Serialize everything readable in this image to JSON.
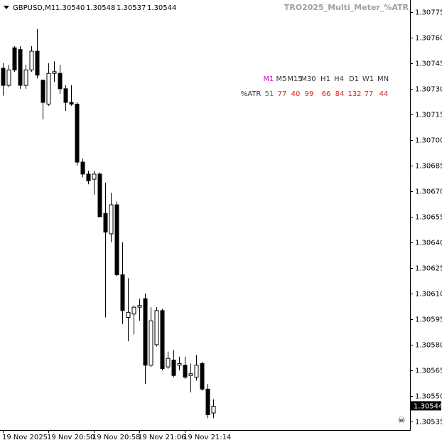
{
  "chart_data": {
    "type": "candlestick",
    "symbol": "GBPUSD,M1",
    "ohlc_labels": [
      "1.30540",
      "1.30548",
      "1.30537",
      "1.30544"
    ],
    "categories": [
      "19 Nov 2025",
      null,
      null,
      null,
      null,
      null,
      null,
      null,
      "19 Nov 20:50",
      null,
      null,
      null,
      null,
      null,
      null,
      null,
      "19 Nov 20:58",
      null,
      null,
      null,
      null,
      null,
      null,
      null,
      "19 Nov 21:06",
      null,
      null,
      null,
      null,
      null,
      null,
      null,
      "19 Nov 21:14",
      null,
      null,
      null,
      null,
      null
    ],
    "open": [
      1.30742,
      1.30732,
      1.30754,
      1.30753,
      1.30732,
      1.30741,
      1.30752,
      1.30735,
      1.30721,
      1.30739,
      1.30739,
      1.3073,
      1.30722,
      1.30721,
      1.30687,
      1.3068,
      1.30677,
      1.3068,
      1.30657,
      1.30645,
      1.30662,
      1.30621,
      1.30596,
      1.30598,
      1.30602,
      1.30607,
      1.30568,
      1.3058,
      1.306,
      1.30567,
      1.30571,
      1.30568,
      1.30568,
      1.30562,
      1.30561,
      1.30569,
      1.30554,
      1.3054
    ],
    "high": [
      1.30745,
      1.30744,
      1.30755,
      1.30755,
      1.30744,
      1.30755,
      1.30765,
      1.30735,
      1.30745,
      1.30746,
      1.30744,
      1.30732,
      1.30732,
      1.30722,
      1.30689,
      1.30682,
      1.30682,
      1.30681,
      1.30675,
      1.30669,
      1.30664,
      1.3064,
      1.30619,
      1.30603,
      1.30607,
      1.3061,
      1.30602,
      1.30602,
      1.30601,
      1.30576,
      1.30577,
      1.30573,
      1.30573,
      1.30569,
      1.30574,
      1.3057,
      1.30557,
      1.30548
    ],
    "low": [
      1.30726,
      1.30731,
      1.3074,
      1.3073,
      1.3073,
      1.3074,
      1.30736,
      1.30712,
      1.3072,
      1.30734,
      1.30727,
      1.30717,
      1.3072,
      1.30685,
      1.30678,
      1.30674,
      1.30668,
      1.30655,
      1.30596,
      1.3064,
      1.3062,
      1.30592,
      1.30582,
      1.30586,
      1.30594,
      1.30557,
      1.30567,
      1.30579,
      1.30565,
      1.30566,
      1.30561,
      1.30565,
      1.3056,
      1.30552,
      1.30559,
      1.30553,
      1.30537,
      1.30537
    ],
    "close": [
      1.30732,
      1.30741,
      1.30741,
      1.30732,
      1.30741,
      1.30752,
      1.30738,
      1.30722,
      1.30739,
      1.3074,
      1.3073,
      1.30722,
      1.30721,
      1.30687,
      1.3068,
      1.30676,
      1.3068,
      1.30655,
      1.30646,
      1.30662,
      1.30621,
      1.306,
      1.30599,
      1.30602,
      1.30603,
      1.30568,
      1.30594,
      1.306,
      1.30566,
      1.30572,
      1.30562,
      1.30569,
      1.30561,
      1.30563,
      1.30568,
      1.30554,
      1.30539,
      1.30544
    ],
    "up_color": "#ffffff",
    "down_color": "#000000",
    "ylim": [
      1.3053,
      1.30782
    ],
    "yticks": [
      {
        "value": 1.30775,
        "label": "1.30775"
      },
      {
        "value": 1.3076,
        "label": "1.30760"
      },
      {
        "value": 1.30745,
        "label": "1.30745"
      },
      {
        "value": 1.3073,
        "label": "1.30730"
      },
      {
        "value": 1.30715,
        "label": "1.30715"
      },
      {
        "value": 1.307,
        "label": "1.30700"
      },
      {
        "value": 1.30685,
        "label": "1.30685"
      },
      {
        "value": 1.3067,
        "label": "1.30670"
      },
      {
        "value": 1.30655,
        "label": "1.30655"
      },
      {
        "value": 1.3064,
        "label": "1.30640"
      },
      {
        "value": 1.30625,
        "label": "1.30625"
      },
      {
        "value": 1.3061,
        "label": "1.30610"
      },
      {
        "value": 1.30595,
        "label": "1.30595"
      },
      {
        "value": 1.3058,
        "label": "1.30580"
      },
      {
        "value": 1.30565,
        "label": "1.30565"
      },
      {
        "value": 1.3055,
        "label": "1.30550"
      },
      {
        "value": 1.30535,
        "label": "1.30535"
      }
    ],
    "current_price": {
      "value": 1.30544,
      "label": "1.30544"
    }
  },
  "indicator": {
    "title": "TRO2025_Multi_Meter_%ATR",
    "timeframes": [
      "M1",
      "M5",
      "M15",
      "M30",
      "H1",
      "H4",
      "D1",
      "W1",
      "MN"
    ],
    "row_label": "%ATR",
    "values": [
      51,
      77,
      40,
      99,
      66,
      84,
      132,
      77,
      44
    ],
    "value_colors": [
      "#2e8b2e",
      "#e02020",
      "#e02020",
      "#e02020",
      "#e02020",
      "#e02020",
      "#e02020",
      "#e02020",
      "#e02020"
    ],
    "active_color": "#cc00cc"
  }
}
